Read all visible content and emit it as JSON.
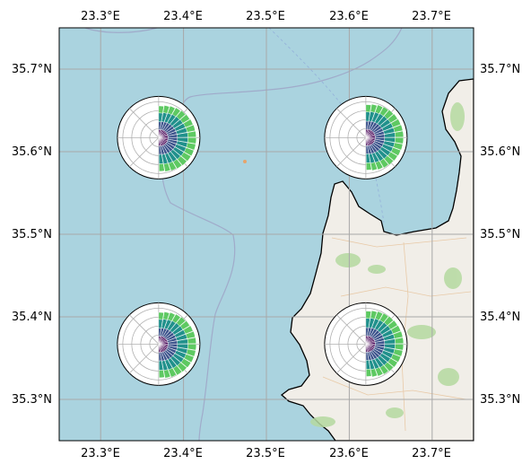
{
  "map": {
    "lon_ticks": [
      "23.3°E",
      "23.4°E",
      "23.5°E",
      "23.6°E",
      "23.7°E"
    ],
    "lat_ticks": [
      "35.7°N",
      "35.6°N",
      "35.5°N",
      "35.4°N",
      "35.3°N"
    ],
    "extent": {
      "lon": [
        23.25,
        23.75
      ],
      "lat": [
        35.25,
        35.75
      ]
    },
    "gridlines": true,
    "colors": {
      "sea": "#aad3df",
      "land": "#f1eee8",
      "vegetation": "#b5d9a0",
      "coastline": "#000000",
      "gridline": "#a8a8a8",
      "rose_low": "#440154",
      "rose_mid": "#3b528b",
      "rose_high": "#21918c",
      "rose_top": "#5ec962"
    }
  },
  "chart_data": {
    "type": "windrose-grid",
    "roses": [
      {
        "location": "NW",
        "lon": 23.37,
        "lat": 35.617
      },
      {
        "location": "NE",
        "lon": 23.62,
        "lat": 35.617
      },
      {
        "location": "SW",
        "lon": 23.37,
        "lat": 35.367
      },
      {
        "location": "SE",
        "lon": 23.62,
        "lat": 35.367
      }
    ]
  }
}
